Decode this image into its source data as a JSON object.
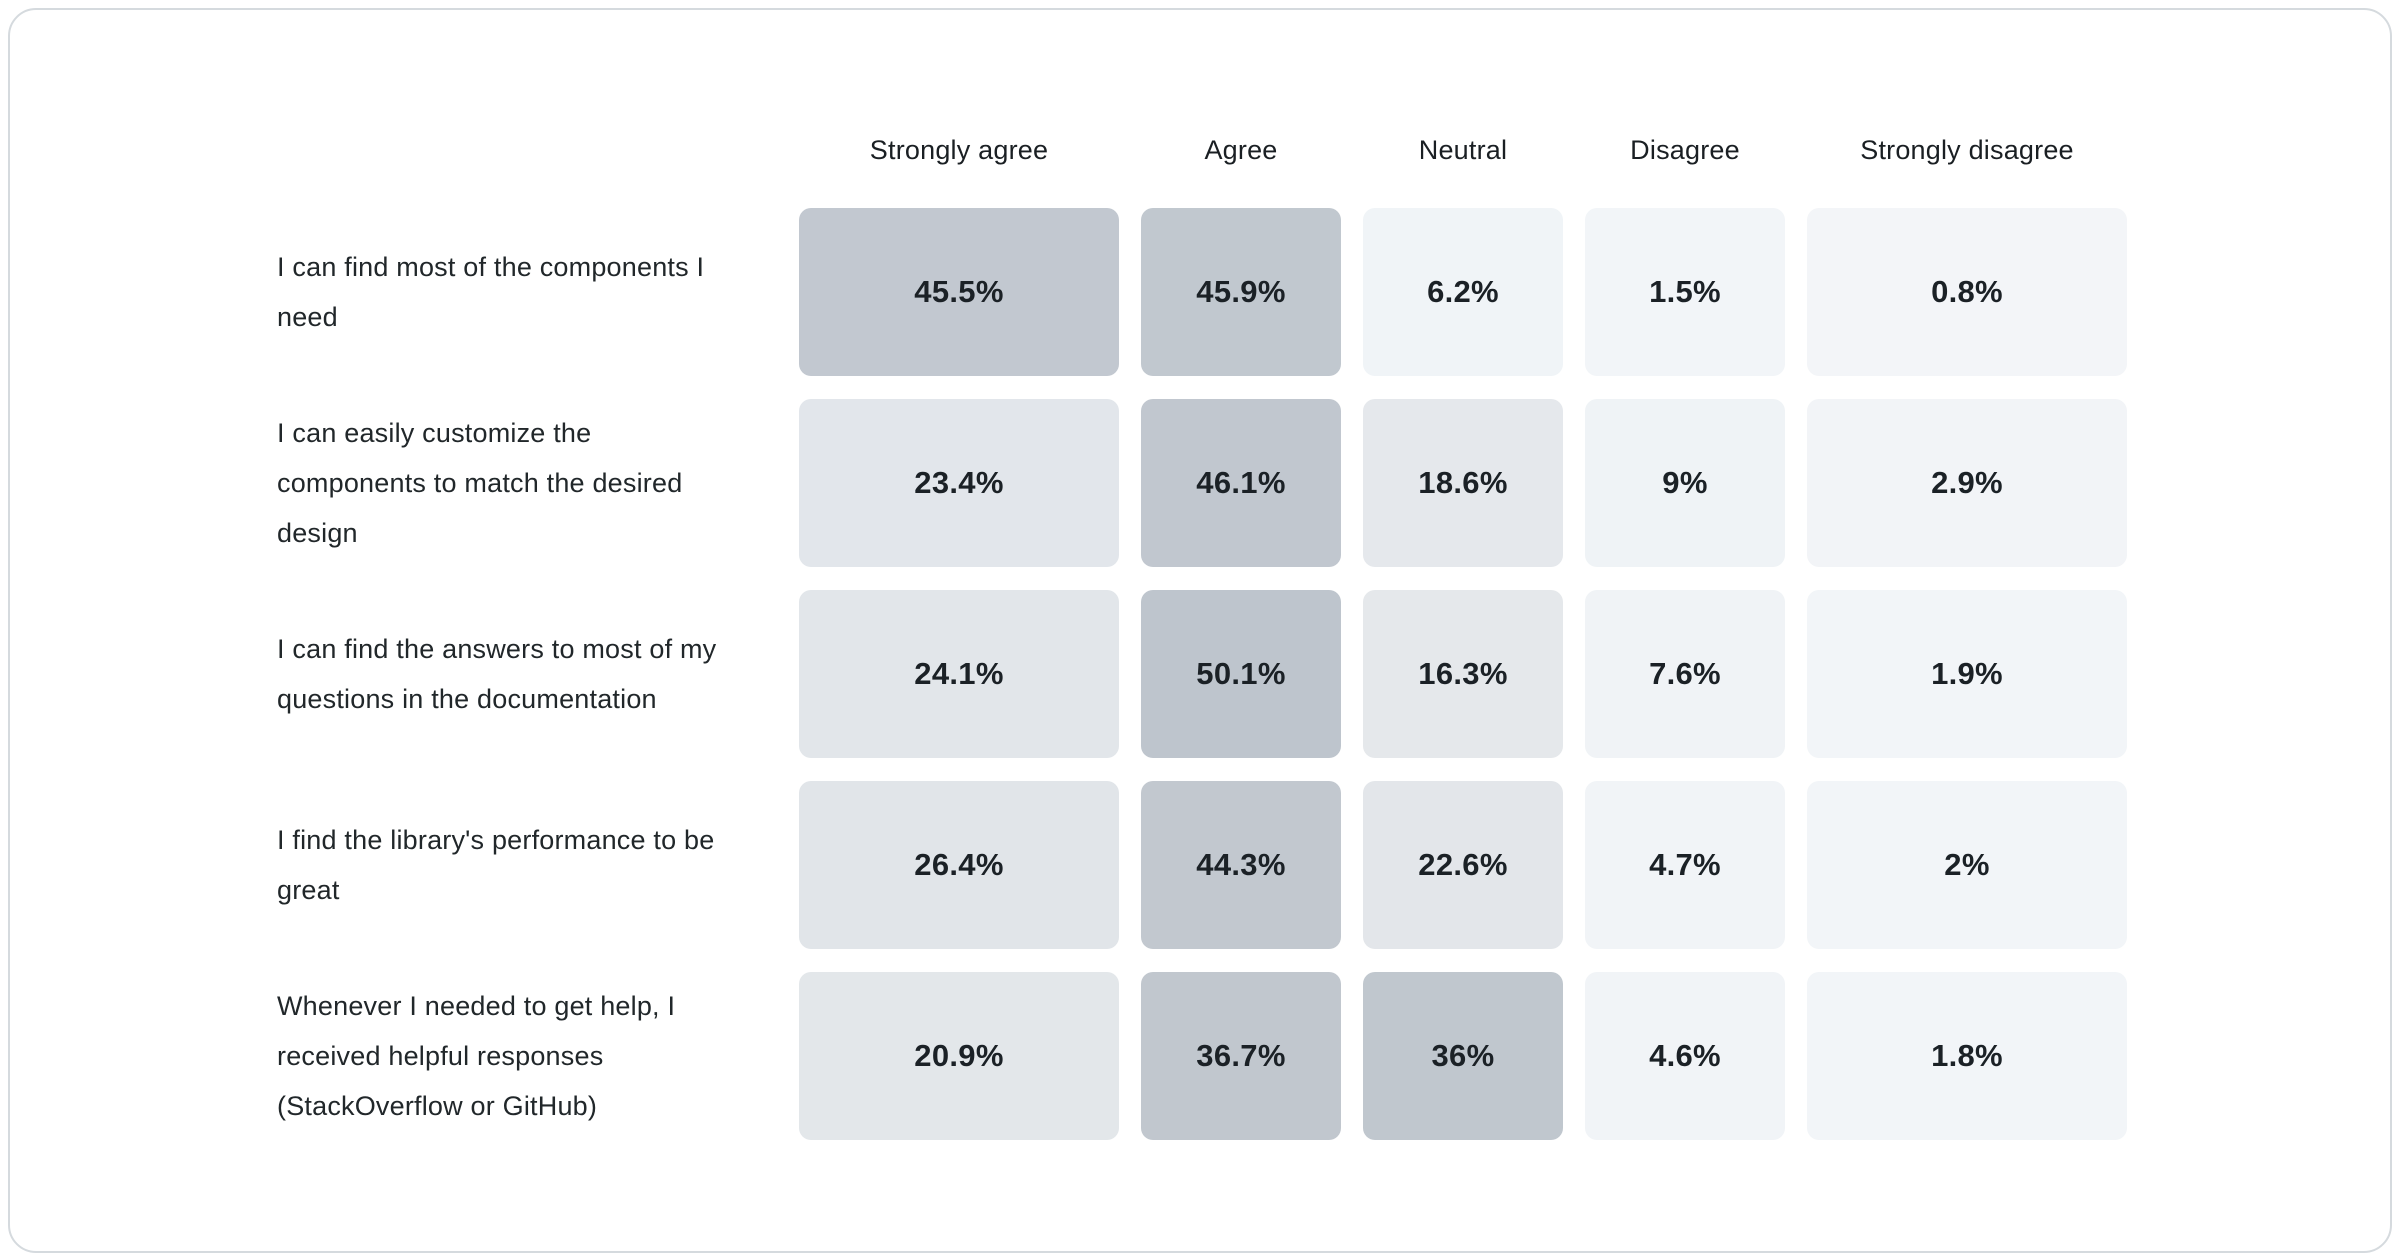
{
  "page": {
    "background": "#ffffff",
    "card_border_color": "#d5dade"
  },
  "chart_data": {
    "type": "heatmap",
    "title": "",
    "description": "Likert-scale survey response matrix; cell shading darkens with higher percentage",
    "columns": [
      "Strongly agree",
      "Agree",
      "Neutral",
      "Disagree",
      "Strongly disagree"
    ],
    "rows": [
      {
        "label": "I can find most of the components I need",
        "values": [
          45.5,
          45.9,
          6.2,
          1.5,
          0.8
        ],
        "display": [
          "45.5%",
          "45.9%",
          "6.2%",
          "1.5%",
          "0.8%"
        ],
        "cell_colors": [
          "#c2c8d0",
          "#c1c8cf",
          "#f0f4f7",
          "#f2f5f8",
          "#f3f5f8"
        ]
      },
      {
        "label": "I can easily customize the components to match the desired design",
        "values": [
          23.4,
          46.1,
          18.6,
          9,
          2.9
        ],
        "display": [
          "23.4%",
          "46.1%",
          "18.6%",
          "9%",
          "2.9%"
        ],
        "cell_colors": [
          "#e2e6eb",
          "#c1c7cf",
          "#e5e8ec",
          "#eff3f6",
          "#f2f4f7"
        ]
      },
      {
        "label": "I can find the answers to most of my questions in the documentation",
        "values": [
          24.1,
          50.1,
          16.3,
          7.6,
          1.9
        ],
        "display": [
          "24.1%",
          "50.1%",
          "16.3%",
          "7.6%",
          "1.9%"
        ],
        "cell_colors": [
          "#e2e6ea",
          "#bec5cd",
          "#e5e8eb",
          "#f0f3f6",
          "#f2f5f8"
        ]
      },
      {
        "label": "I find the library's performance to be great",
        "values": [
          26.4,
          44.3,
          22.6,
          4.7,
          2
        ],
        "display": [
          "26.4%",
          "44.3%",
          "22.6%",
          "4.7%",
          "2%"
        ],
        "cell_colors": [
          "#e1e5e9",
          "#c2c8cf",
          "#e3e6ea",
          "#f1f4f7",
          "#f2f5f8"
        ]
      },
      {
        "label": "Whenever I needed to get help, I received helpful responses (StackOverflow or GitHub)",
        "values": [
          20.9,
          36.7,
          36,
          4.6,
          1.8
        ],
        "display": [
          "20.9%",
          "36.7%",
          "36%",
          "4.6%",
          "1.8%"
        ],
        "cell_colors": [
          "#e3e7ea",
          "#c1c7ce",
          "#c0c7ce",
          "#f1f4f7",
          "#f2f5f8"
        ]
      }
    ],
    "color_scale": {
      "low": "#f3f6f8",
      "high": "#bec5cd",
      "note": "darker cell = higher percentage"
    },
    "legend_position": "none",
    "grid": false
  }
}
